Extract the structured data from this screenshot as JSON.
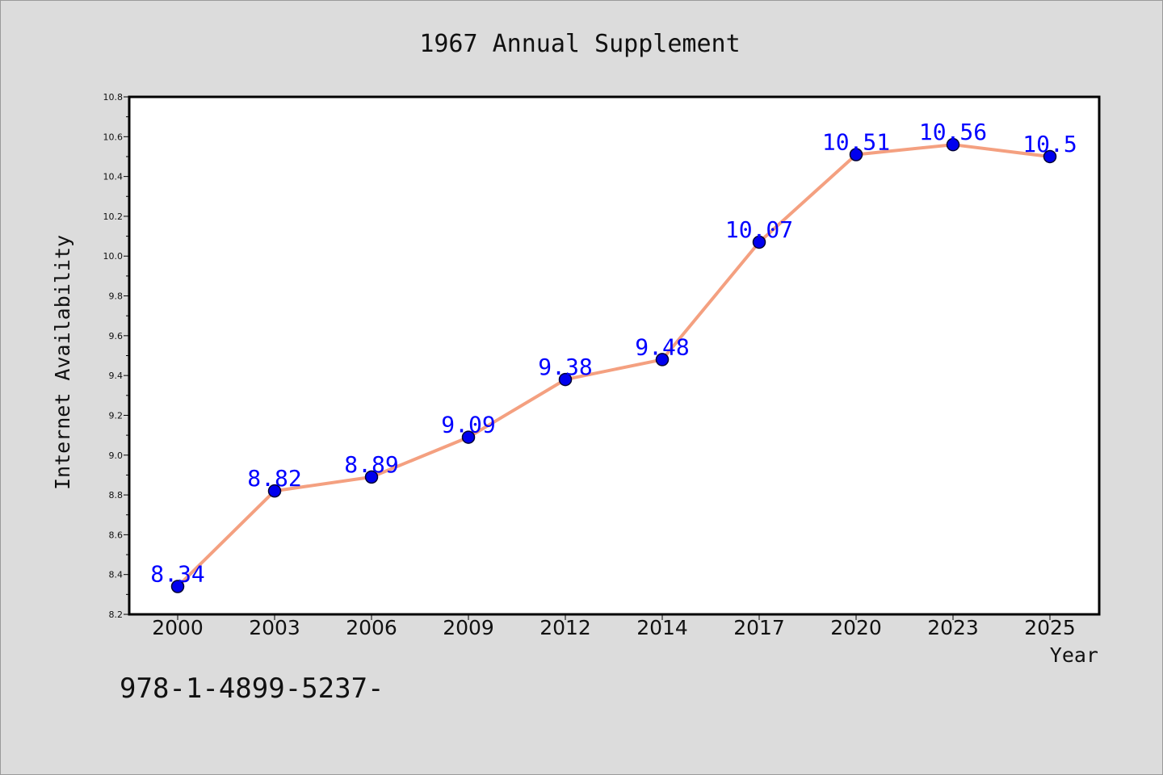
{
  "chart_data": {
    "type": "line",
    "title": "1967 Annual Supplement",
    "xlabel": "Year",
    "ylabel": "Internet Availability",
    "categories": [
      "2000",
      "2003",
      "2006",
      "2009",
      "2012",
      "2014",
      "2017",
      "2020",
      "2023",
      "2025"
    ],
    "series": [
      {
        "values": [
          8.34,
          8.82,
          8.89,
          9.09,
          9.38,
          9.48,
          10.07,
          10.51,
          10.56,
          10.5
        ],
        "labels": [
          "8.34",
          "8.82",
          "8.89",
          "9.09",
          "9.38",
          "9.48",
          "10.07",
          "10.51",
          "10.56",
          "10.5"
        ]
      }
    ],
    "ylim": [
      8.2,
      10.8
    ],
    "yticks": [
      "8.2",
      "8.4",
      "8.6",
      "8.8",
      "9.0",
      "9.2",
      "9.4",
      "9.6",
      "9.8",
      "10.0",
      "10.2",
      "10.4",
      "10.6",
      "10.8"
    ],
    "grid": false,
    "colors": {
      "line": "#f4a080",
      "marker": "#0000ee",
      "marker_edge": "#000033",
      "label": "#0000ff"
    }
  },
  "footnote": "978-1-4899-5237-"
}
